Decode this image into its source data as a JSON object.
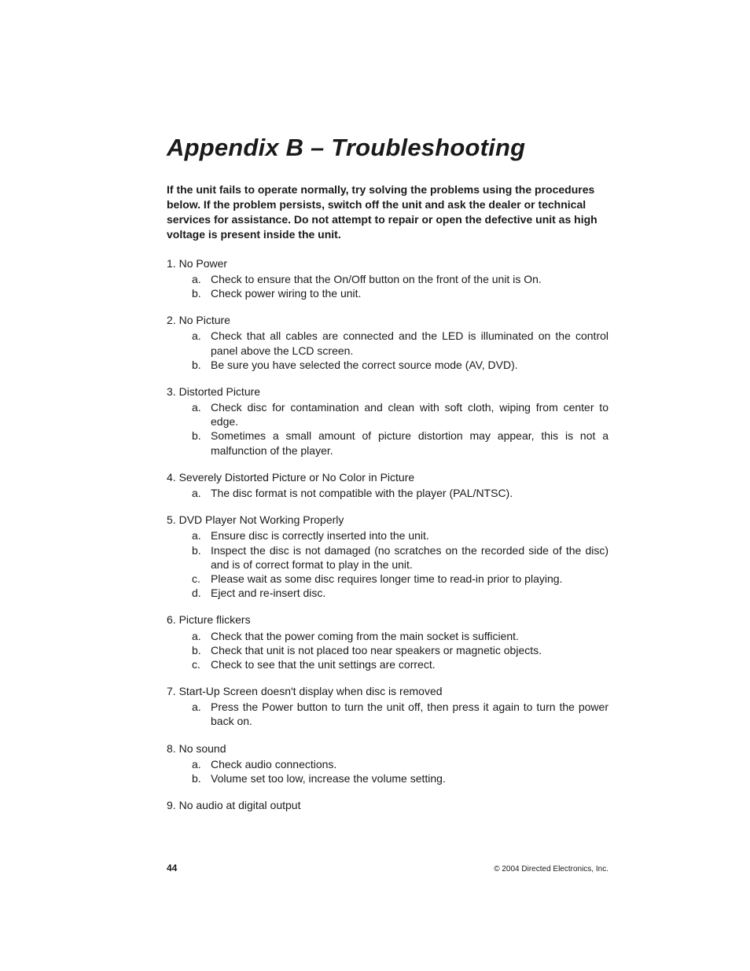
{
  "title": "Appendix B – Troubleshooting",
  "intro": "If the unit fails to operate normally, try solving the problems using the procedures below. If the problem persists, switch off the unit and ask the dealer or technical services for assistance. Do not attempt to repair or open the defective unit as high voltage is present inside the unit.",
  "items": [
    {
      "num": "1.",
      "heading": "No Power",
      "subs": [
        {
          "l": "a.",
          "t": "Check to ensure that the On/Off button on the front of the unit is On."
        },
        {
          "l": "b.",
          "t": "Check power wiring to the unit."
        }
      ]
    },
    {
      "num": "2.",
      "heading": "No Picture",
      "subs": [
        {
          "l": "a.",
          "t": "Check that all cables are connected and the LED is illuminated on the control panel above the LCD screen."
        },
        {
          "l": "b.",
          "t": "Be sure you have selected the correct source mode (AV, DVD)."
        }
      ]
    },
    {
      "num": "3.",
      "heading": "Distorted Picture",
      "subs": [
        {
          "l": "a.",
          "t": "Check disc for contamination and clean with soft cloth, wiping from center to edge."
        },
        {
          "l": "b.",
          "t": "Sometimes a small amount of picture distortion may appear, this is not a malfunction of the player."
        }
      ]
    },
    {
      "num": "4.",
      "heading": "Severely Distorted Picture or No Color in Picture",
      "subs": [
        {
          "l": "a.",
          "t": "The disc format is not compatible with the player (PAL/NTSC)."
        }
      ]
    },
    {
      "num": "5.",
      "heading": "DVD Player Not Working Properly",
      "subs": [
        {
          "l": "a.",
          "t": "Ensure disc is correctly inserted into the unit."
        },
        {
          "l": "b.",
          "t": "Inspect the disc is not damaged (no scratches on the recorded side of the disc) and is of correct format to play in the unit."
        },
        {
          "l": "c.",
          "t": "Please wait as some disc requires longer time to read-in prior to playing."
        },
        {
          "l": "d.",
          "t": "Eject and re-insert disc."
        }
      ]
    },
    {
      "num": "6.",
      "heading": "Picture flickers",
      "subs": [
        {
          "l": "a.",
          "t": "Check that the power coming from the main socket is sufficient."
        },
        {
          "l": "b.",
          "t": "Check that unit is not placed too near speakers or magnetic objects."
        },
        {
          "l": "c.",
          "t": "Check to see that the unit settings are correct."
        }
      ]
    },
    {
      "num": "7.",
      "heading": "Start-Up Screen doesn't display when disc is removed",
      "subs": [
        {
          "l": "a.",
          "t": "Press the Power button to turn the unit off, then press it again to turn the power back on."
        }
      ]
    },
    {
      "num": "8.",
      "heading": "No sound",
      "subs": [
        {
          "l": "a.",
          "t": "Check audio connections."
        },
        {
          "l": "b.",
          "t": "Volume set too low, increase the volume setting."
        }
      ]
    },
    {
      "num": "9.",
      "heading": "No audio at digital output",
      "subs": []
    }
  ],
  "footer": {
    "page": "44",
    "copyright": "© 2004 Directed Electronics, Inc."
  }
}
